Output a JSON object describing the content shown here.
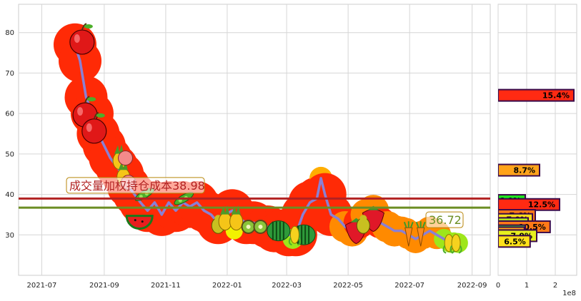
{
  "chart_data": [
    {
      "type": "line",
      "x_ticks": [
        "2021-07",
        "2021-09",
        "2021-11",
        "2022-01",
        "2022-03",
        "2022-05",
        "2022-07",
        "2022-09"
      ],
      "y_ticks": [
        "30",
        "40",
        "50",
        "60",
        "70",
        "80"
      ],
      "ylim": [
        20,
        87
      ],
      "grid": true,
      "series": [
        {
          "points": [
            [
              "2021-08-03",
              77
            ],
            [
              "2021-08-08",
              73
            ],
            [
              "2021-08-14",
              64
            ],
            [
              "2021-08-20",
              60
            ],
            [
              "2021-08-26",
              55
            ],
            [
              "2021-09-01",
              52
            ],
            [
              "2021-09-07",
              49
            ],
            [
              "2021-09-13",
              47
            ],
            [
              "2021-09-19",
              45
            ],
            [
              "2021-09-25",
              42
            ],
            [
              "2021-10-01",
              40
            ],
            [
              "2021-10-07",
              38
            ],
            [
              "2021-10-14",
              36
            ],
            [
              "2021-10-21",
              38
            ],
            [
              "2021-10-28",
              35
            ],
            [
              "2021-11-04",
              38
            ],
            [
              "2021-11-11",
              36
            ],
            [
              "2021-11-18",
              38
            ],
            [
              "2021-11-25",
              37
            ],
            [
              "2021-12-02",
              38
            ],
            [
              "2021-12-09",
              36
            ],
            [
              "2021-12-16",
              35
            ],
            [
              "2021-12-23",
              33
            ],
            [
              "2021-12-30",
              35
            ],
            [
              "2022-01-06",
              36
            ],
            [
              "2022-01-13",
              34
            ],
            [
              "2022-01-20",
              33
            ],
            [
              "2022-01-27",
              33
            ],
            [
              "2022-02-10",
              32
            ],
            [
              "2022-02-17",
              31
            ],
            [
              "2022-02-24",
              31
            ],
            [
              "2022-03-03",
              30
            ],
            [
              "2022-03-10",
              30
            ],
            [
              "2022-03-17",
              35
            ],
            [
              "2022-03-24",
              38
            ],
            [
              "2022-03-31",
              39
            ],
            [
              "2022-04-04",
              44
            ],
            [
              "2022-04-08",
              40
            ],
            [
              "2022-04-14",
              35
            ],
            [
              "2022-04-21",
              34
            ],
            [
              "2022-04-28",
              32
            ],
            [
              "2022-05-05",
              31
            ],
            [
              "2022-05-12",
              33
            ],
            [
              "2022-05-19",
              35
            ],
            [
              "2022-05-26",
              36
            ],
            [
              "2022-06-02",
              33
            ],
            [
              "2022-06-09",
              32
            ],
            [
              "2022-06-16",
              31
            ],
            [
              "2022-06-23",
              31
            ],
            [
              "2022-06-30",
              30
            ],
            [
              "2022-07-07",
              29
            ],
            [
              "2022-07-14",
              30
            ],
            [
              "2022-07-21",
              31
            ],
            [
              "2022-07-28",
              30
            ],
            [
              "2022-08-04",
              29
            ],
            [
              "2022-08-11",
              28
            ],
            [
              "2022-08-18",
              28
            ]
          ],
          "color": "#8a80d4"
        }
      ],
      "reference_lines": [
        {
          "label": "成交量加权持仓成本38.98",
          "value": 38.98,
          "color": "#b22222"
        },
        {
          "label": "36.72",
          "value": 36.72,
          "color": "#6b8e23"
        }
      ]
    },
    {
      "type": "bar",
      "orientation": "horizontal",
      "x_ticks": [
        "0",
        "1",
        "2"
      ],
      "x_scale_label": "1e8",
      "xlim": [
        0,
        2.75
      ],
      "bars": [
        {
          "y": 64.5,
          "value": 2.65,
          "label": "15.4%",
          "color": "#ff2a12"
        },
        {
          "y": 46.0,
          "value": 1.45,
          "label": "8.7%",
          "color": "#ffa31a"
        },
        {
          "y": 38.5,
          "value": 0.95,
          "label": "6.0%",
          "color": "#1ee61e"
        },
        {
          "y": 37.5,
          "value": 2.15,
          "label": "12.5%",
          "color": "#ff2a12"
        },
        {
          "y": 34.8,
          "value": 1.3,
          "label": "7.6%",
          "color": "#ff7a18"
        },
        {
          "y": 33.8,
          "value": 1.2,
          "label": "7.0%",
          "color": "#ffe01a"
        },
        {
          "y": 32.8,
          "value": 1.05,
          "label": "6.2%",
          "color": "#b4ee1e"
        },
        {
          "y": 32.0,
          "value": 1.82,
          "label": "10.5%",
          "color": "#ff7a18"
        },
        {
          "y": 31.0,
          "value": 0.95,
          "label": "5.6%",
          "color": "#3cee32"
        },
        {
          "y": 30.5,
          "value": 0.92,
          "label": "5.3%",
          "color": "#ffa31a"
        },
        {
          "y": 29.8,
          "value": 1.35,
          "label": "7.9%",
          "color": "#e6ee1e"
        },
        {
          "y": 28.4,
          "value": 1.12,
          "label": "6.5%",
          "color": "#ffe01a"
        }
      ]
    }
  ],
  "colors": {
    "blob_red": "#ff2a06",
    "blob_orange": "#ff8a00",
    "blob_amber": "#ffae00",
    "blob_yellow": "#f2f200",
    "blob_lime": "#9ee61a"
  },
  "decorations": [
    {
      "icon": "apple-icon",
      "date": "2021-08-10",
      "y": 78
    },
    {
      "icon": "apple-icon",
      "date": "2021-08-13",
      "y": 60
    },
    {
      "icon": "apple-icon",
      "date": "2021-08-22",
      "y": 56
    },
    {
      "icon": "pineapple-icon",
      "date": "2021-09-16",
      "y": 49
    },
    {
      "icon": "pineapple-icon",
      "date": "2021-09-20",
      "y": 45
    },
    {
      "icon": "peach-icon",
      "date": "2021-09-22",
      "y": 49
    },
    {
      "icon": "peach-icon",
      "date": "2021-09-25",
      "y": 43
    },
    {
      "icon": "watermelon-slice-icon",
      "date": "2021-10-06",
      "y": 34
    },
    {
      "icon": "peas-icon",
      "date": "2021-10-11",
      "y": 40
    },
    {
      "icon": "peas-icon",
      "date": "2021-11-19",
      "y": 39
    },
    {
      "icon": "pear-icon",
      "date": "2021-12-23",
      "y": 33
    },
    {
      "icon": "pineapple-icon",
      "date": "2021-12-30",
      "y": 34
    },
    {
      "icon": "pineapple-icon",
      "date": "2022-01-10",
      "y": 34
    },
    {
      "icon": "kiwi-icon",
      "date": "2022-01-22",
      "y": 32
    },
    {
      "icon": "kiwi-icon",
      "date": "2022-02-03",
      "y": 32
    },
    {
      "icon": "watermelon-icon",
      "date": "2022-02-21",
      "y": 31
    },
    {
      "icon": "watermelon-icon",
      "date": "2022-03-18",
      "y": 30
    },
    {
      "icon": "corn-icon",
      "date": "2022-03-09",
      "y": 30
    },
    {
      "icon": "strawberry-icon",
      "date": "2022-05-09",
      "y": 31
    },
    {
      "icon": "strawberry-icon",
      "date": "2022-05-26",
      "y": 34
    },
    {
      "icon": "pear-icon",
      "date": "2022-05-16",
      "y": 33
    },
    {
      "icon": "carrot-icon",
      "date": "2022-06-30",
      "y": 30
    },
    {
      "icon": "carrot-icon",
      "date": "2022-07-12",
      "y": 30
    },
    {
      "icon": "corn-icon",
      "date": "2022-08-09",
      "y": 28
    },
    {
      "icon": "corn-icon",
      "date": "2022-08-16",
      "y": 28
    }
  ]
}
